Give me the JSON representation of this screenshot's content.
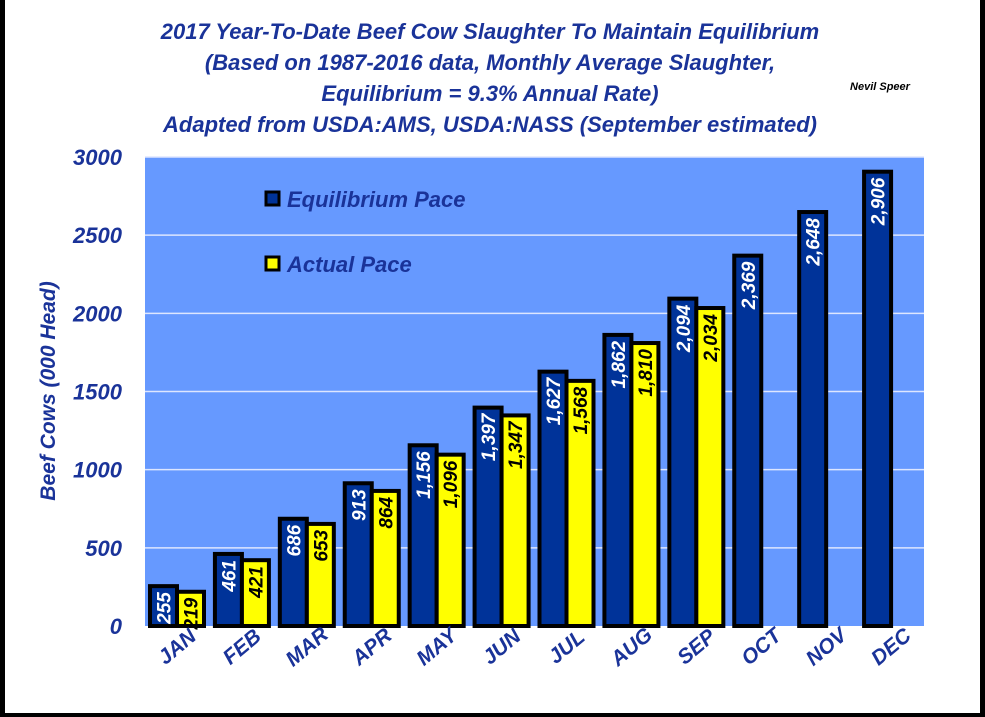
{
  "chart_data": {
    "type": "bar",
    "title": [
      "2017 Year-To-Date Beef Cow Slaughter To Maintain Equilibrium",
      "(Based on 1987-2016 data, Monthly Average Slaughter,",
      "Equilibrium = 9.3% Annual Rate)",
      "Adapted from USDA:AMS, USDA:NASS (September estimated)"
    ],
    "author": "Nevil Speer",
    "xlabel": "",
    "ylabel": "Beef Cows (000 Head)",
    "ylim": [
      0,
      3000
    ],
    "yticks": [
      0,
      500,
      1000,
      1500,
      2000,
      2500,
      3000
    ],
    "grid": true,
    "legend_position": "top-left",
    "categories": [
      "JAN",
      "FEB",
      "MAR",
      "APR",
      "MAY",
      "JUN",
      "JUL",
      "AUG",
      "SEP",
      "OCT",
      "NOV",
      "DEC"
    ],
    "series": [
      {
        "name": "Equilibrium Pace",
        "color": "#003399",
        "values": [
          255,
          461,
          686,
          913,
          1156,
          1397,
          1627,
          1862,
          2094,
          2369,
          2648,
          2906
        ],
        "labels": [
          "255",
          "461",
          "686",
          "913",
          "1,156",
          "1,397",
          "1,627",
          "1,862",
          "2,094",
          "2,369",
          "2,648",
          "2,906"
        ]
      },
      {
        "name": "Actual Pace",
        "color": "#FFFF00",
        "values": [
          219,
          421,
          653,
          864,
          1096,
          1347,
          1568,
          1810,
          2034,
          null,
          null,
          null
        ],
        "labels": [
          "219",
          "421",
          "653",
          "864",
          "1,096",
          "1,347",
          "1,568",
          "1,810",
          "2,034",
          null,
          null,
          null
        ]
      }
    ],
    "plot_background": "#6699FF",
    "text_color": "#1A3399"
  }
}
